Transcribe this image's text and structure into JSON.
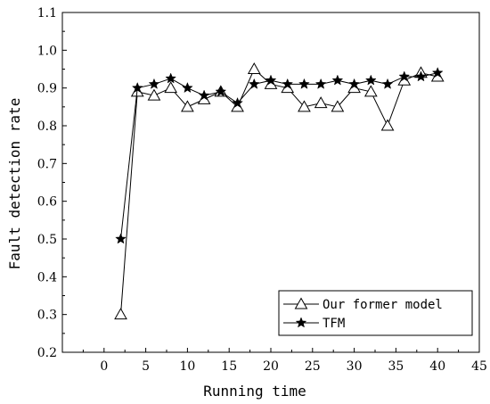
{
  "chart_data": {
    "type": "line",
    "title": "",
    "xlabel": "Running time",
    "ylabel": "Fault detection rate",
    "xlim": [
      -5,
      45
    ],
    "ylim": [
      0.2,
      1.1
    ],
    "xticks": [
      0,
      5,
      10,
      15,
      20,
      25,
      30,
      35,
      40,
      45
    ],
    "yticks": [
      0.2,
      0.3,
      0.4,
      0.5,
      0.6,
      0.7,
      0.8,
      0.9,
      1.0,
      1.1
    ],
    "xtick_labels": [
      "0",
      "5",
      "10",
      "15",
      "20",
      "25",
      "30",
      "35",
      "40",
      "45"
    ],
    "ytick_labels": [
      "0.2",
      "0.3",
      "0.4",
      "0.5",
      "0.6",
      "0.7",
      "0.8",
      "0.9",
      "1.0",
      "1.1"
    ],
    "grid": false,
    "legend_position": "bottom-right",
    "series": [
      {
        "name": "Our former model",
        "marker": "triangle-open",
        "color": "#000000",
        "x": [
          2,
          4,
          6,
          8,
          10,
          12,
          14,
          16,
          18,
          20,
          22,
          24,
          26,
          28,
          30,
          32,
          34,
          36,
          38,
          40
        ],
        "y": [
          0.3,
          0.89,
          0.88,
          0.9,
          0.85,
          0.87,
          0.89,
          0.85,
          0.95,
          0.91,
          0.9,
          0.85,
          0.86,
          0.85,
          0.9,
          0.89,
          0.8,
          0.92,
          0.94,
          0.93
        ]
      },
      {
        "name": "TFM",
        "marker": "star-filled",
        "color": "#000000",
        "x": [
          2,
          4,
          6,
          8,
          10,
          12,
          14,
          16,
          18,
          20,
          22,
          24,
          26,
          28,
          30,
          32,
          34,
          36,
          38,
          40
        ],
        "y": [
          0.5,
          0.9,
          0.91,
          0.925,
          0.9,
          0.88,
          0.89,
          0.86,
          0.91,
          0.92,
          0.91,
          0.91,
          0.91,
          0.92,
          0.91,
          0.92,
          0.91,
          0.93,
          0.93,
          0.94
        ]
      }
    ]
  }
}
